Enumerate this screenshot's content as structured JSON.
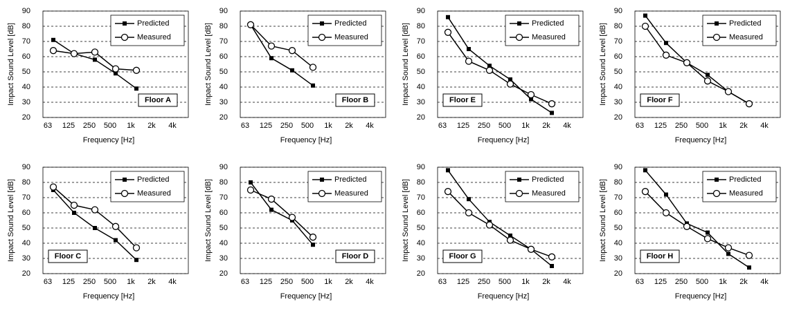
{
  "chart_data": [
    {
      "type": "line",
      "annotation": "Floor A",
      "x_label": "Frequency [Hz]",
      "y_label": "Impact Sound Level [dB]",
      "categories": [
        "63",
        "125",
        "250",
        "500",
        "1k",
        "2k",
        "4k"
      ],
      "ylim": [
        20,
        90
      ],
      "yticks": [
        20,
        30,
        40,
        50,
        60,
        70,
        80,
        90
      ],
      "grid": true,
      "legend": "upper right",
      "series": [
        {
          "name": "Predicted",
          "color": "#000000",
          "values": [
            71,
            62,
            58,
            49,
            39,
            null,
            null
          ]
        },
        {
          "name": "Measured",
          "color": "#000000",
          "values": [
            64,
            62,
            63,
            52,
            51,
            null,
            null
          ]
        }
      ]
    },
    {
      "type": "line",
      "annotation": "Floor B",
      "x_label": "Frequency [Hz]",
      "y_label": "Impact Sound Level [dB]",
      "categories": [
        "63",
        "125",
        "250",
        "500",
        "1k",
        "2k",
        "4k"
      ],
      "ylim": [
        20,
        90
      ],
      "yticks": [
        20,
        30,
        40,
        50,
        60,
        70,
        80,
        90
      ],
      "grid": true,
      "legend": "upper right",
      "series": [
        {
          "name": "Predicted",
          "color": "#000000",
          "values": [
            81,
            59,
            51,
            41,
            null,
            null,
            null
          ]
        },
        {
          "name": "Measured",
          "color": "#000000",
          "values": [
            81,
            67,
            64,
            53,
            null,
            null,
            null
          ]
        }
      ]
    },
    {
      "type": "line",
      "annotation": "Floor E",
      "x_label": "Frequency [Hz]",
      "y_label": "Impact Sound Level [dB]",
      "categories": [
        "63",
        "125",
        "250",
        "500",
        "1k",
        "2k",
        "4k"
      ],
      "ylim": [
        20,
        90
      ],
      "yticks": [
        20,
        30,
        40,
        50,
        60,
        70,
        80,
        90
      ],
      "grid": true,
      "legend": "upper right",
      "series": [
        {
          "name": "Predicted",
          "color": "#000000",
          "values": [
            86,
            65,
            54,
            45,
            32,
            23,
            null
          ]
        },
        {
          "name": "Measured",
          "color": "#000000",
          "values": [
            76,
            57,
            51,
            42,
            35,
            29,
            null
          ]
        }
      ]
    },
    {
      "type": "line",
      "annotation": "Floor F",
      "x_label": "Frequency [Hz]",
      "y_label": "Impact Sound Level [dB]",
      "categories": [
        "63",
        "125",
        "250",
        "500",
        "1k",
        "2k",
        "4k"
      ],
      "ylim": [
        20,
        90
      ],
      "yticks": [
        20,
        30,
        40,
        50,
        60,
        70,
        80,
        90
      ],
      "grid": true,
      "legend": "upper right",
      "series": [
        {
          "name": "Predicted",
          "color": "#000000",
          "values": [
            87,
            69,
            56,
            48,
            37,
            29,
            null
          ]
        },
        {
          "name": "Measured",
          "color": "#000000",
          "values": [
            80,
            61,
            56,
            44,
            37,
            29,
            null
          ]
        }
      ]
    },
    {
      "type": "line",
      "annotation": "Floor C",
      "x_label": "Frequency [Hz]",
      "y_label": "Impact Sound Level [dB]",
      "categories": [
        "63",
        "125",
        "250",
        "500",
        "1k",
        "2k",
        "4k"
      ],
      "ylim": [
        20,
        90
      ],
      "yticks": [
        20,
        30,
        40,
        50,
        60,
        70,
        80,
        90
      ],
      "grid": true,
      "legend": "upper right",
      "series": [
        {
          "name": "Predicted",
          "color": "#000000",
          "values": [
            75,
            60,
            50,
            42,
            29,
            null,
            null
          ]
        },
        {
          "name": "Measured",
          "color": "#000000",
          "values": [
            77,
            65,
            62,
            51,
            37,
            null,
            null
          ]
        }
      ]
    },
    {
      "type": "line",
      "annotation": "Floor D",
      "x_label": "Frequency [Hz]",
      "y_label": "Impact Sound Level [dB]",
      "categories": [
        "63",
        "125",
        "250",
        "500",
        "1k",
        "2k",
        "4k"
      ],
      "ylim": [
        20,
        90
      ],
      "yticks": [
        20,
        30,
        40,
        50,
        60,
        70,
        80,
        90
      ],
      "grid": true,
      "legend": "upper right",
      "series": [
        {
          "name": "Predicted",
          "color": "#000000",
          "values": [
            80,
            62,
            55,
            39,
            null,
            null,
            null
          ]
        },
        {
          "name": "Measured",
          "color": "#000000",
          "values": [
            75,
            69,
            57,
            44,
            null,
            null,
            null
          ]
        }
      ]
    },
    {
      "type": "line",
      "annotation": "Floor G",
      "x_label": "Frequency [Hz]",
      "y_label": "Impact Sound Level [dB]",
      "categories": [
        "63",
        "125",
        "250",
        "500",
        "1k",
        "2k",
        "4k"
      ],
      "ylim": [
        20,
        90
      ],
      "yticks": [
        20,
        30,
        40,
        50,
        60,
        70,
        80,
        90
      ],
      "grid": true,
      "legend": "upper right",
      "series": [
        {
          "name": "Predicted",
          "color": "#000000",
          "values": [
            88,
            69,
            54,
            45,
            36,
            25,
            null
          ]
        },
        {
          "name": "Measured",
          "color": "#000000",
          "values": [
            74,
            60,
            52,
            42,
            36,
            31,
            null
          ]
        }
      ]
    },
    {
      "type": "line",
      "annotation": "Floor H",
      "x_label": "Frequency [Hz]",
      "y_label": "Impact Sound Level [dB]",
      "categories": [
        "63",
        "125",
        "250",
        "500",
        "1k",
        "2k",
        "4k"
      ],
      "ylim": [
        20,
        90
      ],
      "yticks": [
        20,
        30,
        40,
        50,
        60,
        70,
        80,
        90
      ],
      "grid": true,
      "legend": "upper right",
      "series": [
        {
          "name": "Predicted",
          "color": "#000000",
          "values": [
            88,
            72,
            53,
            47,
            33,
            24,
            null
          ]
        },
        {
          "name": "Measured",
          "color": "#000000",
          "values": [
            74,
            60,
            51,
            43,
            37,
            32,
            null
          ]
        }
      ]
    }
  ]
}
